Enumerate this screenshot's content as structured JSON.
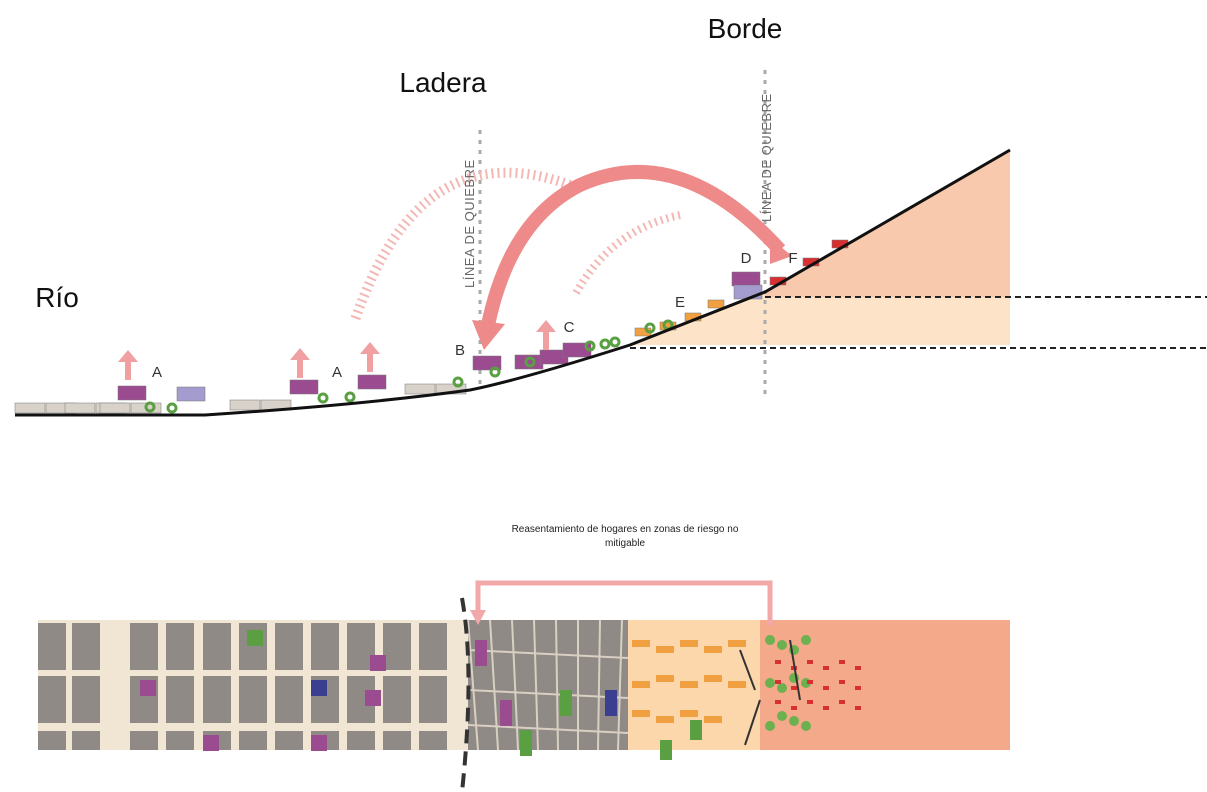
{
  "titles": {
    "rio": "Río",
    "ladera": "Ladera",
    "borde": "Borde"
  },
  "break_lines": [
    "LÍNEA DE QUIEBRE",
    "LÍNEA DE QUIEBRE"
  ],
  "points": [
    "A",
    "A",
    "B",
    "C",
    "D",
    "E",
    "F"
  ],
  "caption": [
    "Reasentamiento de hogares en zonas de riesgo no",
    "mitigable"
  ]
}
